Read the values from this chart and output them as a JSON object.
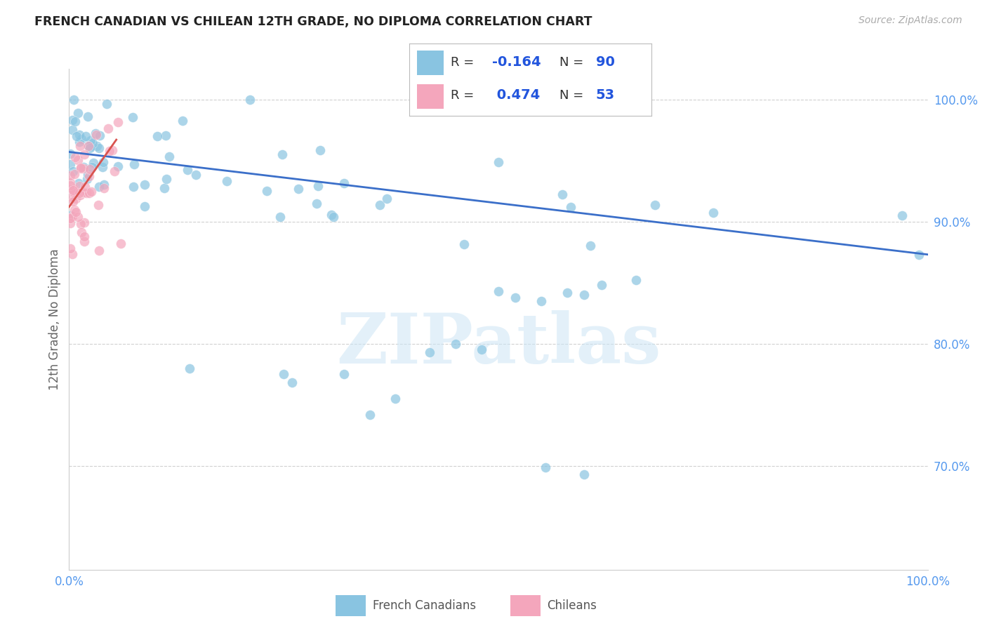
{
  "title": "FRENCH CANADIAN VS CHILEAN 12TH GRADE, NO DIPLOMA CORRELATION CHART",
  "source": "Source: ZipAtlas.com",
  "ylabel": "12th Grade, No Diploma",
  "watermark": "ZIPatlas",
  "legend_label_blue": "French Canadians",
  "legend_label_pink": "Chileans",
  "y_tick_labels": [
    "100.0%",
    "90.0%",
    "80.0%",
    "70.0%"
  ],
  "y_tick_positions": [
    1.0,
    0.9,
    0.8,
    0.7
  ],
  "x_range": [
    0.0,
    1.0
  ],
  "y_range": [
    0.615,
    1.025
  ],
  "blue_color": "#89c4e1",
  "pink_color": "#f4a6bc",
  "blue_line_color": "#3b6fc9",
  "pink_line_color": "#d9534f",
  "background_color": "#ffffff",
  "grid_color": "#d0d0d0",
  "tick_color": "#5599ee",
  "blue_r": "-0.164",
  "blue_n": "90",
  "pink_r": "0.474",
  "pink_n": "53",
  "blue_line_x0": 0.0,
  "blue_line_y0": 0.957,
  "blue_line_x1": 1.0,
  "blue_line_y1": 0.873,
  "pink_line_x0": 0.0,
  "pink_line_y0": 0.912,
  "pink_line_x1": 0.055,
  "pink_line_y1": 0.967
}
